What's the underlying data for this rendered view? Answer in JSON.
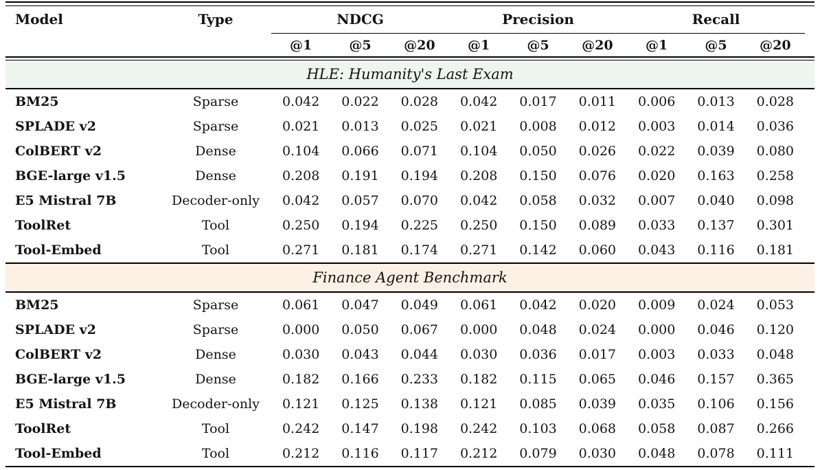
{
  "table": {
    "columns": {
      "model_header": "Model",
      "type_header": "Type",
      "groups": [
        {
          "label": "NDCG",
          "sub": [
            "@1",
            "@5",
            "@20"
          ]
        },
        {
          "label": "Precision",
          "sub": [
            "@1",
            "@5",
            "@20"
          ]
        },
        {
          "label": "Recall",
          "sub": [
            "@1",
            "@5",
            "@20"
          ]
        }
      ]
    },
    "sections": [
      {
        "title": "HLE: Humanity's Last Exam",
        "band_color": "#edf5ee",
        "rows": [
          {
            "model": "BM25",
            "type": "Sparse",
            "values": [
              "0.042",
              "0.022",
              "0.028",
              "0.042",
              "0.017",
              "0.011",
              "0.006",
              "0.013",
              "0.028"
            ]
          },
          {
            "model": "SPLADE v2",
            "type": "Sparse",
            "values": [
              "0.021",
              "0.013",
              "0.025",
              "0.021",
              "0.008",
              "0.012",
              "0.003",
              "0.014",
              "0.036"
            ]
          },
          {
            "model": "ColBERT v2",
            "type": "Dense",
            "values": [
              "0.104",
              "0.066",
              "0.071",
              "0.104",
              "0.050",
              "0.026",
              "0.022",
              "0.039",
              "0.080"
            ]
          },
          {
            "model": "BGE-large v1.5",
            "type": "Dense",
            "values": [
              "0.208",
              "0.191",
              "0.194",
              "0.208",
              "0.150",
              "0.076",
              "0.020",
              "0.163",
              "0.258"
            ]
          },
          {
            "model": "E5 Mistral 7B",
            "type": "Decoder-only",
            "values": [
              "0.042",
              "0.057",
              "0.070",
              "0.042",
              "0.058",
              "0.032",
              "0.007",
              "0.040",
              "0.098"
            ]
          },
          {
            "model": "ToolRet",
            "type": "Tool",
            "values": [
              "0.250",
              "0.194",
              "0.225",
              "0.250",
              "0.150",
              "0.089",
              "0.033",
              "0.137",
              "0.301"
            ]
          },
          {
            "model": "Tool-Embed",
            "type": "Tool",
            "values": [
              "0.271",
              "0.181",
              "0.174",
              "0.271",
              "0.142",
              "0.060",
              "0.043",
              "0.116",
              "0.181"
            ]
          }
        ]
      },
      {
        "title": "Finance Agent Benchmark",
        "band_color": "#fdf0e5",
        "rows": [
          {
            "model": "BM25",
            "type": "Sparse",
            "values": [
              "0.061",
              "0.047",
              "0.049",
              "0.061",
              "0.042",
              "0.020",
              "0.009",
              "0.024",
              "0.053"
            ]
          },
          {
            "model": "SPLADE v2",
            "type": "Sparse",
            "values": [
              "0.000",
              "0.050",
              "0.067",
              "0.000",
              "0.048",
              "0.024",
              "0.000",
              "0.046",
              "0.120"
            ]
          },
          {
            "model": "ColBERT v2",
            "type": "Dense",
            "values": [
              "0.030",
              "0.043",
              "0.044",
              "0.030",
              "0.036",
              "0.017",
              "0.003",
              "0.033",
              "0.048"
            ]
          },
          {
            "model": "BGE-large v1.5",
            "type": "Dense",
            "values": [
              "0.182",
              "0.166",
              "0.233",
              "0.182",
              "0.115",
              "0.065",
              "0.046",
              "0.157",
              "0.365"
            ]
          },
          {
            "model": "E5 Mistral 7B",
            "type": "Decoder-only",
            "values": [
              "0.121",
              "0.125",
              "0.138",
              "0.121",
              "0.085",
              "0.039",
              "0.035",
              "0.106",
              "0.156"
            ]
          },
          {
            "model": "ToolRet",
            "type": "Tool",
            "values": [
              "0.242",
              "0.147",
              "0.198",
              "0.242",
              "0.103",
              "0.068",
              "0.058",
              "0.087",
              "0.266"
            ]
          },
          {
            "model": "Tool-Embed",
            "type": "Tool",
            "values": [
              "0.212",
              "0.116",
              "0.117",
              "0.212",
              "0.079",
              "0.030",
              "0.048",
              "0.078",
              "0.111"
            ]
          }
        ]
      }
    ]
  }
}
